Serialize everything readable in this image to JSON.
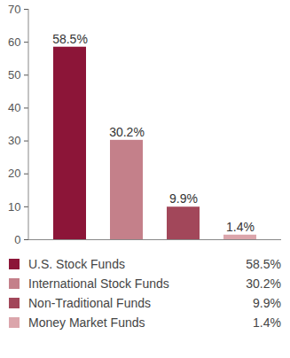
{
  "chart_data": {
    "type": "bar",
    "categories": [
      "U.S. Stock Funds",
      "International Stock Funds",
      "Non-Traditional Funds",
      "Money Market Funds"
    ],
    "values": [
      58.5,
      30.2,
      9.9,
      1.4
    ],
    "value_labels": [
      "58.5%",
      "30.2%",
      "9.9%",
      "1.4%"
    ],
    "colors": [
      "#8c1538",
      "#c4808a",
      "#a2475a",
      "#dba5ab"
    ],
    "ylim": [
      0,
      70
    ],
    "yticks": [
      0,
      10,
      20,
      30,
      40,
      50,
      60,
      70
    ],
    "grid": false,
    "data_labels": true,
    "tick_labels": "y",
    "legend": "bottom"
  }
}
